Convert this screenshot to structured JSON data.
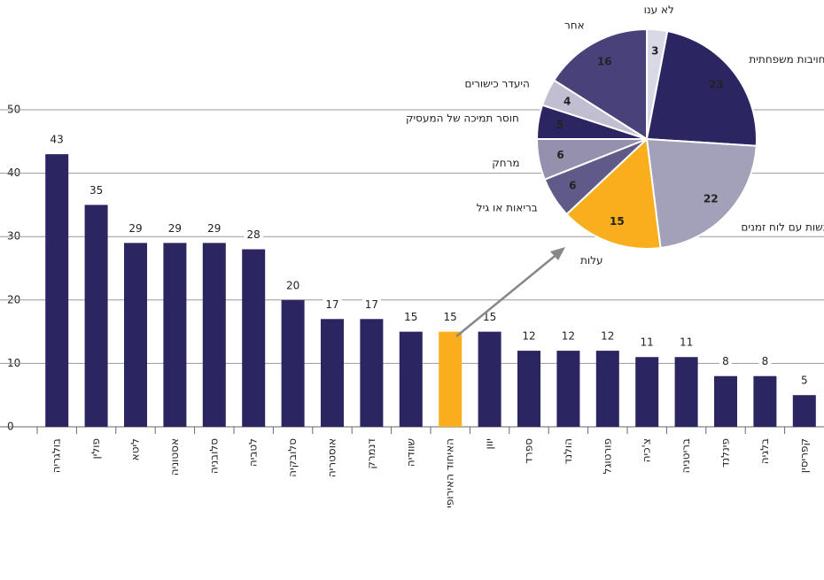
{
  "chart_data": [
    {
      "type": "bar",
      "categories": [
        "בולגריה",
        "פולין",
        "ליטא",
        "אסטוניה",
        "סלובניה",
        "לטביה",
        "סלובקיה",
        "אוסטריה",
        "דנמרק",
        "שוודיה",
        "האיחוד האירופי",
        "יוון",
        "ספרד",
        "הולנד",
        "פורטוגל",
        "צ'כיה",
        "בריטניה",
        "פינלנד",
        "בלגיה",
        "קפריסין"
      ],
      "values": [
        43,
        35,
        29,
        29,
        29,
        28,
        20,
        17,
        17,
        15,
        15,
        15,
        12,
        12,
        12,
        11,
        11,
        8,
        8,
        5
      ],
      "colors": [
        "#2b2661",
        "#2b2661",
        "#2b2661",
        "#2b2661",
        "#2b2661",
        "#2b2661",
        "#2b2661",
        "#2b2661",
        "#2b2661",
        "#2b2661",
        "#f9ae1b",
        "#2b2661",
        "#2b2661",
        "#2b2661",
        "#2b2661",
        "#2b2661",
        "#2b2661",
        "#2b2661",
        "#2b2661",
        "#2b2661"
      ],
      "ylim": [
        0,
        50
      ],
      "yticks": [
        0,
        10,
        20,
        30,
        40,
        50
      ],
      "grid": true
    },
    {
      "type": "pie",
      "categories": [
        "לא ענו",
        "מחויבות משפחתית",
        "התנגשות עם לוח זמנים",
        "עלות",
        "בריאות או גיל",
        "מרחק",
        "חוסר תמיכה של המעסיק",
        "היעדר כישורים",
        "אחר"
      ],
      "values": [
        3,
        23,
        22,
        15,
        6,
        6,
        5,
        4,
        16
      ],
      "colors": [
        "#d9d8e6",
        "#2b2661",
        "#a3a0b9",
        "#f9ae1b",
        "#5f5a87",
        "#9490ae",
        "#2b2661",
        "#c0bed0",
        "#49427a"
      ]
    }
  ]
}
